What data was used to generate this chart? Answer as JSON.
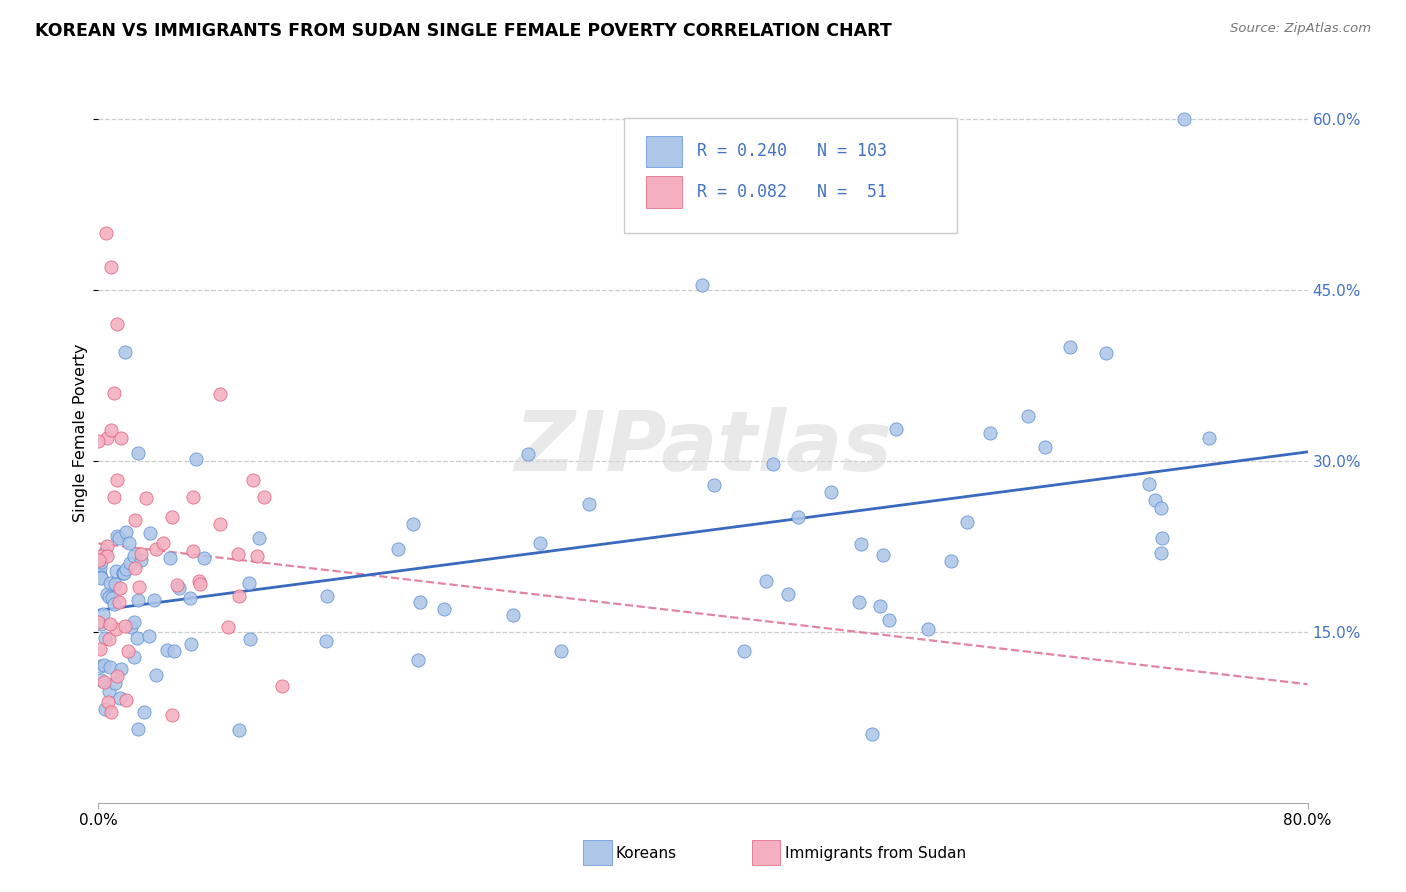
{
  "title": "KOREAN VS IMMIGRANTS FROM SUDAN SINGLE FEMALE POVERTY CORRELATION CHART",
  "source": "Source: ZipAtlas.com",
  "ylabel": "Single Female Poverty",
  "korean_color": "#aec6e8",
  "korean_edge": "#5b8fd4",
  "sudan_color": "#f4afc0",
  "sudan_edge": "#e0607a",
  "korean_line_color": "#3a6abf",
  "sudan_line_color": "#e07090",
  "right_tick_color": "#4472c4",
  "watermark_text": "ZIPatlas",
  "legend_label_korean": "Koreans",
  "legend_label_sudan": "Immigrants from Sudan",
  "background_color": "#ffffff",
  "grid_color": "#cccccc",
  "xlim": [
    0.0,
    0.8
  ],
  "ylim": [
    0.0,
    0.65
  ],
  "ytick_vals": [
    0.15,
    0.3,
    0.45,
    0.6
  ],
  "ytick_labels": [
    "15.0%",
    "30.0%",
    "45.0%",
    "60.0%"
  ],
  "xtick_vals": [
    0.0,
    0.8
  ],
  "xtick_labels": [
    "0.0%",
    "80.0%"
  ],
  "korean_R": 0.24,
  "korean_N": 103,
  "sudan_R": 0.082,
  "sudan_N": 51
}
